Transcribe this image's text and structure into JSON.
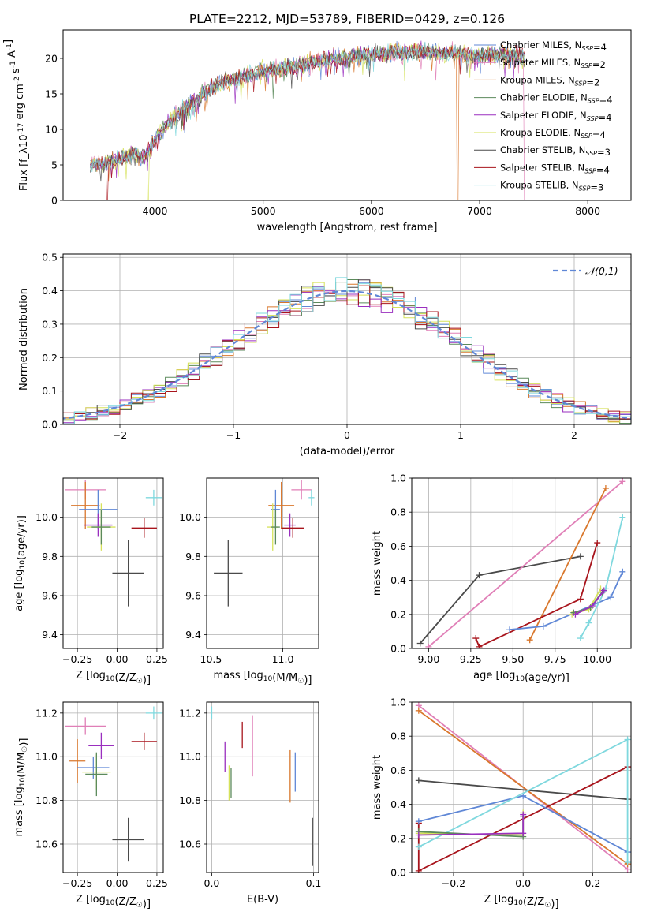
{
  "figure_title": "PLATE=2212, MJD=53789, FIBERID=0429, z=0.126",
  "chart_data": [
    {
      "id": "spectrum",
      "type": "line",
      "title": "PLATE=2212, MJD=53789, FIBERID=0429, z=0.126",
      "xlabel": "wavelength [Angstrom, rest frame]",
      "ylabel": "Flux [f_λ10^-17 erg cm^-2 s^-1 A^-1]",
      "xlim": [
        3150,
        8400
      ],
      "ylim": [
        0,
        24
      ],
      "xticks": [
        4000,
        5000,
        6000,
        7000,
        8000
      ],
      "yticks": [
        0,
        5,
        10,
        15,
        20
      ],
      "grid": false,
      "legend_position": "top-right",
      "continuum": {
        "x": [
          3400,
          3600,
          3800,
          3900,
          4000,
          4100,
          4200,
          4300,
          4400,
          4500,
          4600,
          4700,
          4800,
          4900,
          5000,
          5200,
          5400,
          5600,
          5800,
          6000,
          6200,
          6400,
          6600,
          6800,
          7000,
          7200,
          7400
        ],
        "y": [
          5.0,
          5.5,
          6.5,
          6.0,
          8.5,
          10.5,
          12.0,
          13.5,
          14.5,
          15.5,
          16.5,
          17.0,
          17.5,
          17.8,
          18.2,
          18.8,
          19.2,
          19.8,
          20.2,
          20.6,
          20.8,
          21.0,
          20.8,
          20.6,
          20.4,
          20.6,
          20.4
        ]
      },
      "series": [
        {
          "name": "Chabrier MILES, N_SSP=4",
          "color": "#5f87d6"
        },
        {
          "name": "Salpeter MILES, N_SSP=2",
          "color": "#e07fb7"
        },
        {
          "name": "Kroupa MILES, N_SSP=2",
          "color": "#d9772c"
        },
        {
          "name": "Chabrier ELODIE, N_SSP=4",
          "color": "#5b8a5b"
        },
        {
          "name": "Salpeter ELODIE, N_SSP=4",
          "color": "#9a2fbf"
        },
        {
          "name": "Kroupa ELODIE, N_SSP=4",
          "color": "#d6e25a"
        },
        {
          "name": "Chabrier STELIB, N_SSP=3",
          "color": "#4a4a4a"
        },
        {
          "name": "Salpeter STELIB, N_SSP=4",
          "color": "#a8141c"
        },
        {
          "name": "Kroupa STELIB, N_SSP=3",
          "color": "#7fd8de"
        }
      ]
    },
    {
      "id": "residuals",
      "type": "bar",
      "xlabel": "(data-model)/error",
      "ylabel": "Normed distribution",
      "xlim": [
        -2.5,
        2.5
      ],
      "ylim": [
        0,
        0.51
      ],
      "xticks": [
        -2,
        -1,
        0,
        1,
        2
      ],
      "yticks": [
        0.0,
        0.1,
        0.2,
        0.3,
        0.4,
        0.5
      ],
      "grid": true,
      "bin_width": 0.1,
      "legend": "𝒩(0,1)",
      "legend_position": "top-right",
      "reference": {
        "name": "𝒩(0,1)",
        "mean": 0,
        "sigma": 1,
        "color": "#5f87d6"
      }
    },
    {
      "id": "age_vs_Z",
      "type": "scatter",
      "xlabel": "Z [log10(Z/Z☉)]",
      "ylabel": "age [log10(age/yr)]",
      "xlim": [
        -0.34,
        0.29
      ],
      "ylim": [
        9.33,
        10.2
      ],
      "xticks": [
        -0.25,
        0.0,
        0.25
      ],
      "yticks": [
        9.4,
        9.6,
        9.8,
        10.0
      ],
      "grid": true,
      "points": [
        {
          "color": "#e07fb7",
          "x": -0.2,
          "y": 10.14,
          "xerr": 0.13,
          "yerr": 0.05
        },
        {
          "color": "#d9772c",
          "x": -0.2,
          "y": 10.06,
          "xerr": 0.09,
          "yerr": 0.12
        },
        {
          "color": "#5f87d6",
          "x": -0.12,
          "y": 10.04,
          "xerr": 0.12,
          "yerr": 0.1
        },
        {
          "color": "#9a2fbf",
          "x": -0.12,
          "y": 9.96,
          "xerr": 0.09,
          "yerr": 0.06
        },
        {
          "color": "#d6e25a",
          "x": -0.1,
          "y": 9.95,
          "xerr": 0.09,
          "yerr": 0.12
        },
        {
          "color": "#5b8a5b",
          "x": -0.1,
          "y": 9.95,
          "xerr": 0.06,
          "yerr": 0.09
        },
        {
          "color": "#a8141c",
          "x": 0.17,
          "y": 9.945,
          "xerr": 0.08,
          "yerr": 0.05
        },
        {
          "color": "#7fd8de",
          "x": 0.23,
          "y": 10.1,
          "xerr": 0.05,
          "yerr": 0.04
        },
        {
          "color": "#4a4a4a",
          "x": 0.07,
          "y": 9.715,
          "xerr": 0.1,
          "yerr": 0.17
        }
      ]
    },
    {
      "id": "age_vs_mass",
      "type": "scatter",
      "xlabel": "mass [log10(M/M☉)]",
      "ylabel": "",
      "xlim": [
        10.47,
        11.25
      ],
      "ylim": [
        9.33,
        10.2
      ],
      "xticks": [
        10.5,
        11.0
      ],
      "yticks": [
        9.4,
        9.6,
        9.8,
        10.0
      ],
      "grid": true,
      "points": [
        {
          "color": "#e07fb7",
          "x": 11.13,
          "y": 10.14,
          "xerr": 0.07,
          "yerr": 0.05
        },
        {
          "color": "#d9772c",
          "x": 10.99,
          "y": 10.06,
          "xerr": 0.09,
          "yerr": 0.12
        },
        {
          "color": "#5f87d6",
          "x": 10.95,
          "y": 10.04,
          "xerr": 0.03,
          "yerr": 0.1
        },
        {
          "color": "#9a2fbf",
          "x": 11.05,
          "y": 9.96,
          "xerr": 0.04,
          "yerr": 0.06
        },
        {
          "color": "#d6e25a",
          "x": 10.93,
          "y": 9.95,
          "xerr": 0.04,
          "yerr": 0.12
        },
        {
          "color": "#5b8a5b",
          "x": 10.95,
          "y": 9.95,
          "xerr": 0.03,
          "yerr": 0.09
        },
        {
          "color": "#a8141c",
          "x": 11.07,
          "y": 9.945,
          "xerr": 0.08,
          "yerr": 0.05
        },
        {
          "color": "#7fd8de",
          "x": 11.2,
          "y": 10.1,
          "xerr": 0.02,
          "yerr": 0.04
        },
        {
          "color": "#4a4a4a",
          "x": 10.62,
          "y": 9.715,
          "xerr": 0.1,
          "yerr": 0.17
        }
      ]
    },
    {
      "id": "weight_vs_age",
      "type": "line",
      "xlabel": "age [log10(age/yr)]",
      "ylabel": "mass weight",
      "xlim": [
        8.9,
        10.2
      ],
      "ylim": [
        0,
        1
      ],
      "xticks": [
        9.0,
        9.25,
        9.5,
        9.75,
        10.0
      ],
      "yticks": [
        0.0,
        0.2,
        0.4,
        0.6,
        0.8,
        1.0
      ],
      "grid": true,
      "series": [
        {
          "color": "#4a4a4a",
          "x": [
            8.95,
            9.3,
            9.9
          ],
          "y": [
            0.03,
            0.43,
            0.54
          ]
        },
        {
          "color": "#e07fb7",
          "x": [
            9.0,
            10.15
          ],
          "y": [
            0.01,
            0.98
          ]
        },
        {
          "color": "#d9772c",
          "x": [
            9.6,
            10.05
          ],
          "y": [
            0.05,
            0.94
          ]
        },
        {
          "color": "#a8141c",
          "x": [
            9.28,
            9.3,
            9.9,
            10.0
          ],
          "y": [
            0.06,
            0.01,
            0.29,
            0.62
          ]
        },
        {
          "color": "#5f87d6",
          "x": [
            9.48,
            9.68,
            10.08,
            10.15
          ],
          "y": [
            0.11,
            0.13,
            0.3,
            0.45
          ]
        },
        {
          "color": "#7fd8de",
          "x": [
            9.9,
            9.95,
            10.05,
            10.15
          ],
          "y": [
            0.06,
            0.15,
            0.35,
            0.77
          ]
        },
        {
          "color": "#d6e25a",
          "x": [
            9.85,
            9.95,
            10.02
          ],
          "y": [
            0.2,
            0.23,
            0.35
          ]
        },
        {
          "color": "#5b8a5b",
          "x": [
            9.86,
            9.96,
            10.03
          ],
          "y": [
            0.21,
            0.24,
            0.33
          ]
        },
        {
          "color": "#9a2fbf",
          "x": [
            9.87,
            9.97,
            10.04
          ],
          "y": [
            0.2,
            0.25,
            0.34
          ]
        }
      ]
    },
    {
      "id": "mass_vs_Z",
      "type": "scatter",
      "xlabel": "Z [log10(Z/Z☉)]",
      "ylabel": "mass [log10(M/M☉)]",
      "xlim": [
        -0.34,
        0.29
      ],
      "ylim": [
        10.47,
        11.25
      ],
      "xticks": [
        -0.25,
        0.0,
        0.25
      ],
      "yticks": [
        10.6,
        10.8,
        11.0,
        11.2
      ],
      "grid": true,
      "points": [
        {
          "color": "#e07fb7",
          "x": -0.2,
          "y": 11.14,
          "xerr": 0.13,
          "yerr": 0.04
        },
        {
          "color": "#d9772c",
          "x": -0.25,
          "y": 10.98,
          "xerr": 0.05,
          "yerr": 0.1
        },
        {
          "color": "#5f87d6",
          "x": -0.15,
          "y": 10.95,
          "xerr": 0.1,
          "yerr": 0.05
        },
        {
          "color": "#9a2fbf",
          "x": -0.1,
          "y": 11.05,
          "xerr": 0.08,
          "yerr": 0.06
        },
        {
          "color": "#d6e25a",
          "x": -0.13,
          "y": 10.93,
          "xerr": 0.09,
          "yerr": 0.08
        },
        {
          "color": "#5b8a5b",
          "x": -0.13,
          "y": 10.92,
          "xerr": 0.07,
          "yerr": 0.1
        },
        {
          "color": "#a8141c",
          "x": 0.17,
          "y": 11.07,
          "xerr": 0.08,
          "yerr": 0.04
        },
        {
          "color": "#7fd8de",
          "x": 0.23,
          "y": 11.2,
          "xerr": 0.05,
          "yerr": 0.03
        },
        {
          "color": "#4a4a4a",
          "x": 0.07,
          "y": 10.62,
          "xerr": 0.1,
          "yerr": 0.1
        }
      ]
    },
    {
      "id": "mass_vs_ebv",
      "type": "scatter",
      "xlabel": "E(B-V)",
      "ylabel": "",
      "xlim": [
        -0.005,
        0.105
      ],
      "ylim": [
        10.47,
        11.25
      ],
      "xticks": [
        0.0,
        0.1
      ],
      "yticks": [
        10.6,
        10.8,
        11.0,
        11.2
      ],
      "grid": true,
      "points": [
        {
          "color": "#7fd8de",
          "x": 0.0,
          "y": 11.2,
          "xerr": 0,
          "yerr": 0.03
        },
        {
          "color": "#9a2fbf",
          "x": 0.013,
          "y": 11.0,
          "xerr": 0,
          "yerr": 0.07
        },
        {
          "color": "#d6e25a",
          "x": 0.017,
          "y": 10.88,
          "xerr": 0,
          "yerr": 0.08
        },
        {
          "color": "#5b8a5b",
          "x": 0.019,
          "y": 10.88,
          "xerr": 0,
          "yerr": 0.07
        },
        {
          "color": "#a8141c",
          "x": 0.03,
          "y": 11.1,
          "xerr": 0,
          "yerr": 0.06
        },
        {
          "color": "#e07fb7",
          "x": 0.04,
          "y": 11.05,
          "xerr": 0,
          "yerr": 0.14
        },
        {
          "color": "#d9772c",
          "x": 0.077,
          "y": 10.91,
          "xerr": 0,
          "yerr": 0.12
        },
        {
          "color": "#5f87d6",
          "x": 0.082,
          "y": 10.93,
          "xerr": 0,
          "yerr": 0.09
        },
        {
          "color": "#4a4a4a",
          "x": 0.099,
          "y": 10.61,
          "xerr": 0,
          "yerr": 0.11
        }
      ]
    },
    {
      "id": "weight_vs_Z",
      "type": "line",
      "xlabel": "Z [log10(Z/Z☉)]",
      "ylabel": "mass weight",
      "xlim": [
        -0.32,
        0.31
      ],
      "ylim": [
        0,
        1
      ],
      "xticks": [
        -0.2,
        0.0,
        0.2
      ],
      "yticks": [
        0.0,
        0.2,
        0.4,
        0.6,
        0.8,
        1.0
      ],
      "grid": true,
      "series": [
        {
          "color": "#e07fb7",
          "x": [
            -0.3,
            0.3
          ],
          "y": [
            0.98,
            0.02
          ]
        },
        {
          "color": "#d9772c",
          "x": [
            -0.3,
            0.3
          ],
          "y": [
            0.95,
            0.05
          ]
        },
        {
          "color": "#4a4a4a",
          "x": [
            -0.3,
            0.3
          ],
          "y": [
            0.54,
            0.43
          ]
        },
        {
          "color": "#a8141c",
          "x": [
            -0.3,
            -0.3,
            0.3
          ],
          "y": [
            0.29,
            0.01,
            0.62
          ]
        },
        {
          "color": "#5f87d6",
          "x": [
            -0.3,
            0.0,
            0.3
          ],
          "y": [
            0.3,
            0.45,
            0.12
          ]
        },
        {
          "color": "#7fd8de",
          "x": [
            -0.3,
            0.3,
            0.3
          ],
          "y": [
            0.15,
            0.78,
            0.06
          ]
        },
        {
          "color": "#d6e25a",
          "x": [
            -0.3,
            0.0,
            0.0
          ],
          "y": [
            0.23,
            0.22,
            0.35
          ]
        },
        {
          "color": "#5b8a5b",
          "x": [
            -0.3,
            0.0,
            0.0
          ],
          "y": [
            0.24,
            0.21,
            0.33
          ]
        },
        {
          "color": "#9a2fbf",
          "x": [
            -0.3,
            0.0,
            0.0
          ],
          "y": [
            0.22,
            0.23,
            0.34
          ]
        }
      ]
    }
  ]
}
